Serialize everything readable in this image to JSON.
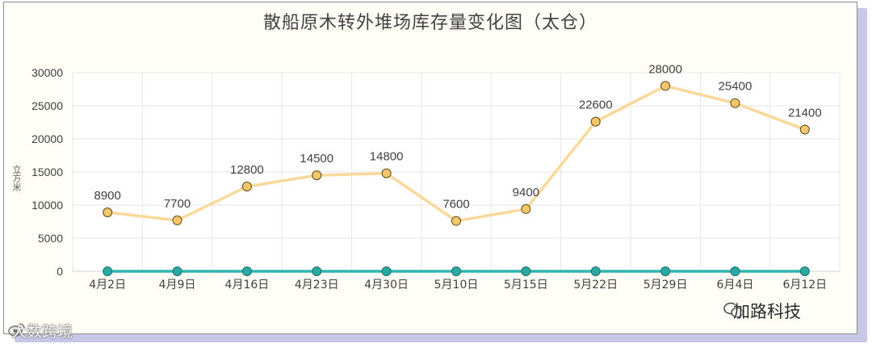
{
  "chart_data": {
    "type": "line",
    "title": "散船原木转外堆场库存量变化图（太仓）",
    "ylabel": "立方米",
    "xlabel": "",
    "categories": [
      "4月2日",
      "4月9日",
      "4月16日",
      "4月23日",
      "4月30日",
      "5月10日",
      "5月15日",
      "5月22日",
      "5月29日",
      "6月4日",
      "6月12日"
    ],
    "ylim": [
      0,
      30000
    ],
    "yticks": [
      0,
      5000,
      10000,
      15000,
      20000,
      25000,
      30000
    ],
    "grid": true,
    "series": [
      {
        "values": [
          8900,
          7700,
          12800,
          14500,
          14800,
          7600,
          9400,
          22600,
          28000,
          25400,
          21400
        ],
        "color": "#f9d89a",
        "marker_color": "#f5c76a",
        "data_labels": true
      },
      {
        "values": [
          0,
          0,
          0,
          0,
          0,
          0,
          0,
          0,
          0,
          0,
          0
        ],
        "color": "#2eb5b0",
        "marker_color": "#2aa9a4",
        "data_labels": false
      }
    ]
  },
  "watermarks": {
    "left": "大数跨境",
    "right": "加路科技"
  }
}
